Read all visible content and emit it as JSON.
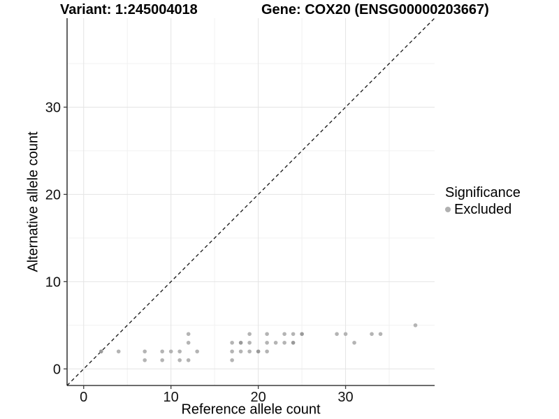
{
  "chart_data": {
    "type": "scatter",
    "title_left": "Variant: 1:245004018",
    "title_right": "Gene: COX20 (ENSG00000203667)",
    "xlabel": "Reference allele count",
    "ylabel": "Alternative allele count",
    "xlim": [
      -1.9,
      40.2
    ],
    "ylim": [
      -1.9,
      40.2
    ],
    "x_major_ticks": [
      0,
      10,
      20,
      30
    ],
    "y_major_ticks": [
      0,
      10,
      20,
      30
    ],
    "x_minor_gridlines": [
      5,
      15,
      25,
      35
    ],
    "y_minor_gridlines": [
      5,
      15,
      25,
      35
    ],
    "grid": true,
    "identity_line": {
      "style": "dashed",
      "equation": "y = x"
    },
    "legend": {
      "title": "Significance",
      "position": "right",
      "items": [
        {
          "label": "Excluded",
          "color": "#b0b0b0"
        }
      ]
    },
    "colors": {
      "background": "#ffffff",
      "grid_major": "#e4e4e4",
      "grid_minor": "#f1f1f1",
      "axis": "#3c3c3c",
      "tick_text": "#111111",
      "identity_line": "#111111",
      "point": "#b4b4b4",
      "point_dense": "#9a9a9a"
    },
    "points": [
      {
        "x": 7,
        "y": 1,
        "overplotted": false
      },
      {
        "x": 9,
        "y": 1,
        "overplotted": false
      },
      {
        "x": 11,
        "y": 1,
        "overplotted": false
      },
      {
        "x": 12,
        "y": 1,
        "overplotted": false
      },
      {
        "x": 17,
        "y": 1,
        "overplotted": false
      },
      {
        "x": 2,
        "y": 2,
        "overplotted": true
      },
      {
        "x": 4,
        "y": 2,
        "overplotted": false
      },
      {
        "x": 7,
        "y": 2,
        "overplotted": false
      },
      {
        "x": 9,
        "y": 2,
        "overplotted": false
      },
      {
        "x": 10,
        "y": 2,
        "overplotted": false
      },
      {
        "x": 11,
        "y": 2,
        "overplotted": false
      },
      {
        "x": 13,
        "y": 2,
        "overplotted": false
      },
      {
        "x": 17,
        "y": 2,
        "overplotted": false
      },
      {
        "x": 18,
        "y": 2,
        "overplotted": false
      },
      {
        "x": 19,
        "y": 2,
        "overplotted": false
      },
      {
        "x": 20,
        "y": 2,
        "overplotted": true
      },
      {
        "x": 21,
        "y": 2,
        "overplotted": false
      },
      {
        "x": 12,
        "y": 3,
        "overplotted": false
      },
      {
        "x": 17,
        "y": 3,
        "overplotted": false
      },
      {
        "x": 18,
        "y": 3,
        "overplotted": true
      },
      {
        "x": 19,
        "y": 3,
        "overplotted": false
      },
      {
        "x": 21,
        "y": 3,
        "overplotted": false
      },
      {
        "x": 22,
        "y": 3,
        "overplotted": false
      },
      {
        "x": 23,
        "y": 3,
        "overplotted": false
      },
      {
        "x": 24,
        "y": 3,
        "overplotted": true
      },
      {
        "x": 31,
        "y": 3,
        "overplotted": false
      },
      {
        "x": 12,
        "y": 4,
        "overplotted": false
      },
      {
        "x": 19,
        "y": 4,
        "overplotted": false
      },
      {
        "x": 21,
        "y": 4,
        "overplotted": false
      },
      {
        "x": 23,
        "y": 4,
        "overplotted": false
      },
      {
        "x": 24,
        "y": 4,
        "overplotted": false
      },
      {
        "x": 25,
        "y": 4,
        "overplotted": true
      },
      {
        "x": 29,
        "y": 4,
        "overplotted": false
      },
      {
        "x": 30,
        "y": 4,
        "overplotted": false
      },
      {
        "x": 33,
        "y": 4,
        "overplotted": false
      },
      {
        "x": 34,
        "y": 4,
        "overplotted": false
      },
      {
        "x": 38,
        "y": 5,
        "overplotted": false
      }
    ]
  }
}
